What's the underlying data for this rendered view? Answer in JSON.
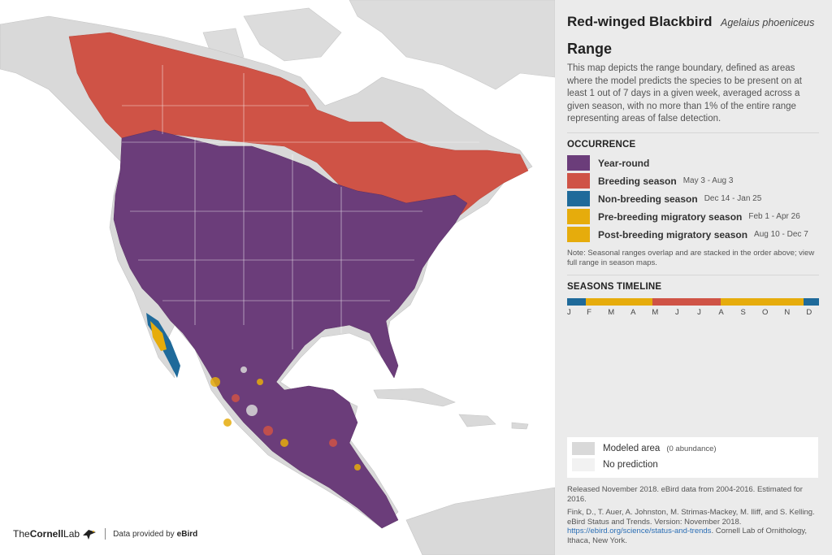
{
  "title": {
    "common_name": "Red-winged Blackbird",
    "scientific_name": "Agelaius phoeniceus"
  },
  "section_title": "Range",
  "description": "This map depicts the range boundary, defined as areas where the model predicts the species to be present on at least 1 out of 7 days in a given week, averaged across a given season, with no more than 1% of the entire range representing areas of false detection.",
  "occurrence": {
    "heading": "OCCURRENCE",
    "items": [
      {
        "label": "Year-round",
        "dates": "",
        "color": "#6b3d7a"
      },
      {
        "label": "Breeding season",
        "dates": "May 3 - Aug 3",
        "color": "#cf5346"
      },
      {
        "label": "Non-breeding season",
        "dates": "Dec 14 - Jan 25",
        "color": "#1f6a9a"
      },
      {
        "label": "Pre-breeding migratory season",
        "dates": "Feb 1 - Apr 26",
        "color": "#e6ac0c"
      },
      {
        "label": "Post-breeding migratory season",
        "dates": "Aug 10 - Dec 7",
        "color": "#e6ac0c"
      }
    ],
    "note": "Note: Seasonal ranges overlap and are stacked in the order above; view full range in season maps."
  },
  "timeline": {
    "heading": "SEASONS TIMELINE",
    "months": [
      "J",
      "F",
      "M",
      "A",
      "M",
      "J",
      "J",
      "A",
      "S",
      "O",
      "N",
      "D"
    ],
    "segments": [
      {
        "season": "non-breeding",
        "fraction": 0.075,
        "color": "#1f6a9a"
      },
      {
        "season": "pre-breeding",
        "fraction": 0.265,
        "color": "#e6ac0c"
      },
      {
        "season": "breeding",
        "fraction": 0.27,
        "color": "#cf5346"
      },
      {
        "season": "post-breeding",
        "fraction": 0.33,
        "color": "#e6ac0c"
      },
      {
        "season": "non-breeding",
        "fraction": 0.06,
        "color": "#1f6a9a"
      }
    ]
  },
  "extra_legend": [
    {
      "label": "Modeled area",
      "sub": "(0 abundance)",
      "color": "#d9d9d9"
    },
    {
      "label": "No prediction",
      "sub": "",
      "color": "#f2f2f2"
    }
  ],
  "footer": {
    "release": "Released November 2018. eBird data from 2004-2016. Estimated for 2016.",
    "citation": "Fink, D., T. Auer, A. Johnston, M. Strimas-Mackey, M. Iliff, and S. Kelling. eBird Status and Trends. Version: November 2018.",
    "link": "https://ebird.org/science/status-and-trends",
    "citation_tail": ". Cornell Lab of Ornithology, Ithaca, New York."
  },
  "brand": {
    "the": "The",
    "cornell": "Cornell",
    "lab": "Lab",
    "provided": "Data provided by",
    "ebird": "eBird"
  }
}
